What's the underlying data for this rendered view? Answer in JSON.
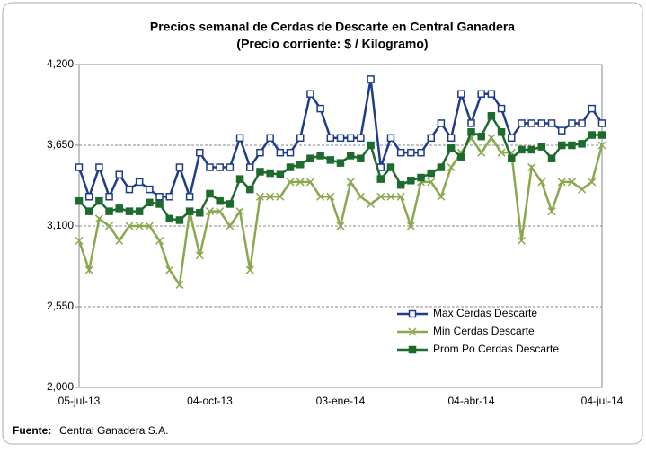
{
  "chart_data": {
    "type": "line",
    "title": "Precios semanal de Cerdas de Descarte en Central Ganadera",
    "subtitle": "(Precio corriente: $ / Kilogramo)",
    "categories": [
      "05-jul-13",
      null,
      null,
      null,
      null,
      null,
      null,
      null,
      null,
      null,
      null,
      null,
      null,
      "04-oct-13",
      null,
      null,
      null,
      null,
      null,
      null,
      null,
      null,
      null,
      null,
      null,
      null,
      "03-ene-14",
      null,
      null,
      null,
      null,
      null,
      null,
      null,
      null,
      null,
      null,
      null,
      null,
      "04-abr-14",
      null,
      null,
      null,
      null,
      null,
      null,
      null,
      null,
      null,
      null,
      null,
      null,
      "04-jul-14"
    ],
    "series": [
      {
        "name": "Max Cerdas Descarte",
        "color": "#1f3c88",
        "marker": "open-square",
        "values": [
          3500,
          3300,
          3500,
          3300,
          3450,
          3350,
          3400,
          3350,
          3300,
          3300,
          3500,
          3300,
          3600,
          3500,
          3500,
          3500,
          3700,
          3500,
          3600,
          3700,
          3600,
          3600,
          3700,
          4000,
          3900,
          3700,
          3700,
          3700,
          3700,
          4100,
          3500,
          3700,
          3600,
          3600,
          3600,
          3700,
          3800,
          3700,
          4000,
          3800,
          4000,
          4000,
          3900,
          3700,
          3800,
          3800,
          3800,
          3800,
          3750,
          3800,
          3800,
          3900,
          3800
        ]
      },
      {
        "name": "Min Cerdas Descarte",
        "color": "#8aa84e",
        "marker": "x",
        "values": [
          3000,
          2800,
          3150,
          3100,
          3000,
          3100,
          3100,
          3100,
          3000,
          2800,
          2700,
          3200,
          2900,
          3200,
          3200,
          3100,
          3200,
          2800,
          3300,
          3300,
          3300,
          3400,
          3400,
          3400,
          3300,
          3300,
          3100,
          3400,
          3300,
          3250,
          3300,
          3300,
          3300,
          3100,
          3400,
          3400,
          3300,
          3500,
          3600,
          3700,
          3600,
          3700,
          3600,
          3600,
          3000,
          3500,
          3400,
          3200,
          3400,
          3400,
          3350,
          3400,
          3650
        ]
      },
      {
        "name": "Prom Po Cerdas Descarte",
        "color": "#1e6b2e",
        "marker": "filled-square",
        "values": [
          3270,
          3200,
          3270,
          3200,
          3220,
          3200,
          3200,
          3260,
          3250,
          3150,
          3140,
          3200,
          3190,
          3320,
          3270,
          3250,
          3420,
          3350,
          3470,
          3460,
          3450,
          3500,
          3520,
          3560,
          3580,
          3550,
          3530,
          3580,
          3560,
          3650,
          3420,
          3500,
          3380,
          3410,
          3430,
          3460,
          3500,
          3630,
          3570,
          3740,
          3710,
          3850,
          3740,
          3560,
          3620,
          3620,
          3640,
          3560,
          3650,
          3650,
          3660,
          3720,
          3720
        ]
      }
    ],
    "ylim": [
      2000,
      4200
    ],
    "yticks": [
      {
        "value": 2000,
        "label": "2,000"
      },
      {
        "value": 2550,
        "label": "2,550"
      },
      {
        "value": 3100,
        "label": "3,100"
      },
      {
        "value": 3650,
        "label": "3,650"
      },
      {
        "value": 4200,
        "label": "4,200"
      }
    ],
    "grid": true,
    "legend": "lower-right",
    "source": {
      "label": "Fuente:",
      "text": "Central Ganadera S.A."
    }
  }
}
